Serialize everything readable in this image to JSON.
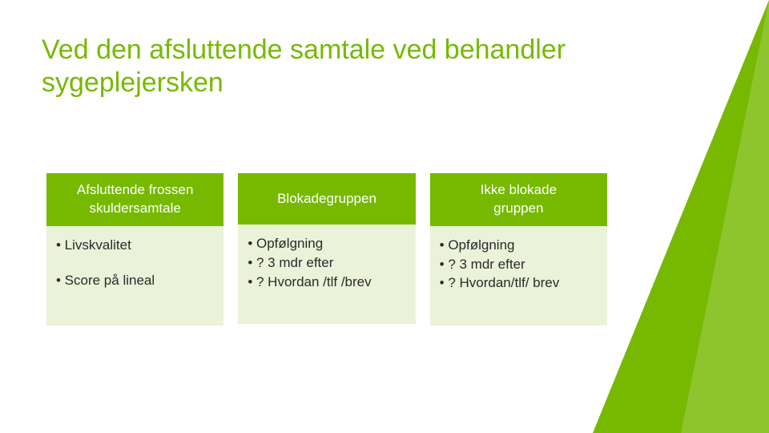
{
  "title": "Ved den afsluttende samtale ved behandler sygeplejersken",
  "accent_color": "#76b900",
  "body_bg": "#eaf3da",
  "text_color": "#2a2a2a",
  "columns": [
    {
      "header_line1": "Afsluttende frossen",
      "header_line2": "skuldersamtale",
      "items": [
        "• Livskvalitet",
        "",
        "• Score på lineal"
      ]
    },
    {
      "header_line1": "Blokadegruppen",
      "header_line2": "",
      "items": [
        "• Opfølgning",
        "• ? 3 mdr efter",
        "• ? Hvordan /tlf /brev"
      ]
    },
    {
      "header_line1": "Ikke blokade",
      "header_line2": "gruppen",
      "items": [
        "• Opfølgning",
        "• ? 3 mdr efter",
        "• ? Hvordan/tlf/ brev"
      ]
    }
  ]
}
